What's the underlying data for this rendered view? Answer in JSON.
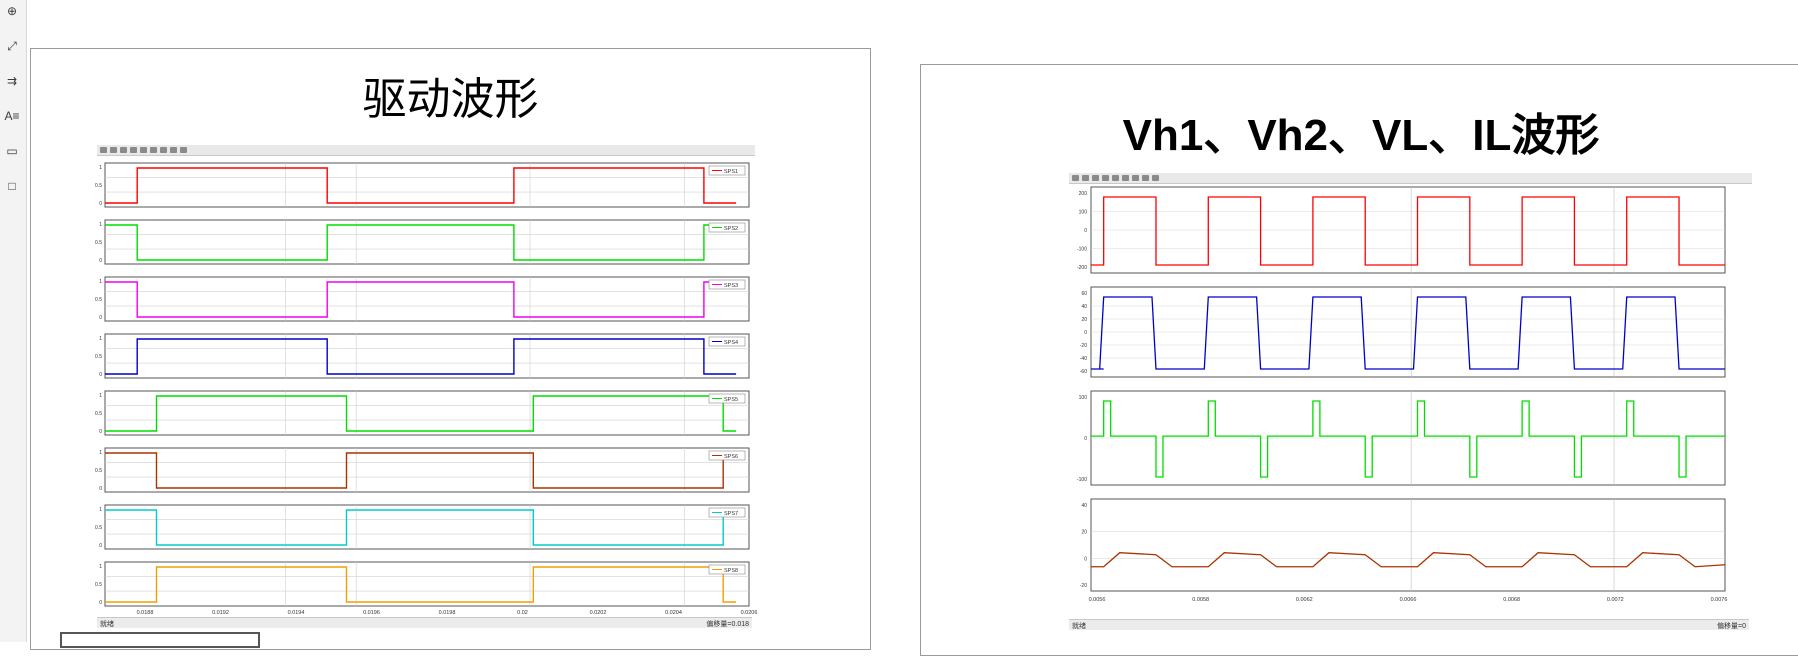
{
  "left_toolbar": {
    "tools": [
      {
        "icon": "zoom-in-icon",
        "glyph": "⊕"
      },
      {
        "icon": "fit-to-window-icon",
        "glyph": "⤢"
      },
      {
        "icon": "arrange-arrows-icon",
        "glyph": "⇉"
      },
      {
        "icon": "text-box-icon",
        "glyph": "A≡"
      },
      {
        "icon": "image-icon",
        "glyph": "▭"
      },
      {
        "icon": "shape-icon",
        "glyph": "□"
      }
    ]
  },
  "left_slide": {
    "title": "驱动波形",
    "chart_data": {
      "type": "line",
      "x_ticks": [
        "0.0188",
        "0.0192",
        "0.0194",
        "0.0196",
        "0.0198",
        "0.02",
        "0.0202",
        "0.0204",
        "0.0206"
      ],
      "xlim": [
        0,
        1
      ],
      "status_left": "就绪",
      "status_right": "偏移量=0.018",
      "series": [
        {
          "name": "SPS1",
          "color": "#ff0000",
          "points": [
            [
              0,
              0
            ],
            [
              0.05,
              0
            ],
            [
              0.05,
              1
            ],
            [
              0.345,
              1
            ],
            [
              0.345,
              0
            ],
            [
              0.635,
              0
            ],
            [
              0.635,
              1
            ],
            [
              0.93,
              1
            ],
            [
              0.93,
              0
            ],
            [
              0.98,
              0
            ]
          ],
          "yticks": [
            "1",
            "0.5",
            "0"
          ]
        },
        {
          "name": "SPS2",
          "color": "#00dd00",
          "points": [
            [
              0,
              1
            ],
            [
              0.05,
              1
            ],
            [
              0.05,
              0
            ],
            [
              0.345,
              0
            ],
            [
              0.345,
              1
            ],
            [
              0.635,
              1
            ],
            [
              0.635,
              0
            ],
            [
              0.93,
              0
            ],
            [
              0.93,
              1
            ],
            [
              0.98,
              1
            ]
          ],
          "yticks": [
            "1",
            "0.5",
            "0"
          ]
        },
        {
          "name": "SPS3",
          "color": "#ee00ee",
          "points": [
            [
              0,
              1
            ],
            [
              0.05,
              1
            ],
            [
              0.05,
              0
            ],
            [
              0.345,
              0
            ],
            [
              0.345,
              1
            ],
            [
              0.635,
              1
            ],
            [
              0.635,
              0
            ],
            [
              0.93,
              0
            ],
            [
              0.93,
              1
            ],
            [
              0.98,
              1
            ]
          ],
          "yticks": [
            "1",
            "0.5",
            "0"
          ]
        },
        {
          "name": "SPS4",
          "color": "#0000cc",
          "points": [
            [
              0,
              0
            ],
            [
              0.05,
              0
            ],
            [
              0.05,
              1
            ],
            [
              0.345,
              1
            ],
            [
              0.345,
              0
            ],
            [
              0.635,
              0
            ],
            [
              0.635,
              1
            ],
            [
              0.93,
              1
            ],
            [
              0.93,
              0
            ],
            [
              0.98,
              0
            ]
          ],
          "yticks": [
            "1",
            "0.5",
            "0"
          ]
        },
        {
          "name": "SPS5",
          "color": "#00dd00",
          "points": [
            [
              0,
              0
            ],
            [
              0.08,
              0
            ],
            [
              0.08,
              1
            ],
            [
              0.375,
              1
            ],
            [
              0.375,
              0
            ],
            [
              0.665,
              0
            ],
            [
              0.665,
              1
            ],
            [
              0.96,
              1
            ],
            [
              0.96,
              0
            ],
            [
              0.98,
              0
            ]
          ],
          "yticks": [
            "1",
            "0.5",
            "0"
          ]
        },
        {
          "name": "SPS6",
          "color": "#aa3300",
          "points": [
            [
              0,
              1
            ],
            [
              0.08,
              1
            ],
            [
              0.08,
              0
            ],
            [
              0.375,
              0
            ],
            [
              0.375,
              1
            ],
            [
              0.665,
              1
            ],
            [
              0.665,
              0
            ],
            [
              0.96,
              0
            ],
            [
              0.96,
              1
            ],
            [
              0.98,
              1
            ]
          ],
          "yticks": [
            "1",
            "0.5",
            "0"
          ]
        },
        {
          "name": "SPS7",
          "color": "#00cccc",
          "points": [
            [
              0,
              1
            ],
            [
              0.08,
              1
            ],
            [
              0.08,
              0
            ],
            [
              0.375,
              0
            ],
            [
              0.375,
              1
            ],
            [
              0.665,
              1
            ],
            [
              0.665,
              0
            ],
            [
              0.96,
              0
            ],
            [
              0.96,
              1
            ],
            [
              0.98,
              1
            ]
          ],
          "yticks": [
            "1",
            "0.5",
            "0"
          ]
        },
        {
          "name": "SPS8",
          "color": "#f0a000",
          "points": [
            [
              0,
              0
            ],
            [
              0.08,
              0
            ],
            [
              0.08,
              1
            ],
            [
              0.375,
              1
            ],
            [
              0.375,
              0
            ],
            [
              0.665,
              0
            ],
            [
              0.665,
              1
            ],
            [
              0.96,
              1
            ],
            [
              0.96,
              0
            ],
            [
              0.98,
              0
            ]
          ],
          "yticks": [
            "1",
            "0.5",
            "0"
          ]
        }
      ]
    }
  },
  "right_slide": {
    "title": "Vh1、Vh2、VL、IL波形",
    "chart_data": {
      "type": "line",
      "x_ticks": [
        "0.0056",
        "0.0058",
        "0.0062",
        "0.0066",
        "0.0068",
        "0.0072",
        "0.0076"
      ],
      "status_left": "就绪",
      "status_right": "偏移量=0",
      "series": [
        {
          "name": "Vh1",
          "color": "#ff0000",
          "kind": "square",
          "phase": 0.0,
          "yticks": [
            "200",
            "100",
            "0",
            "-100",
            "-200"
          ]
        },
        {
          "name": "Vh2",
          "color": "#0000cc",
          "kind": "square_rounded",
          "phase": 0.01,
          "yticks": [
            "60",
            "40",
            "20",
            "0",
            "-20",
            "-40",
            "-60"
          ]
        },
        {
          "name": "VL",
          "color": "#00dd00",
          "kind": "spikes",
          "phase": 0.0,
          "yticks": [
            "100",
            "0",
            "-100"
          ]
        },
        {
          "name": "IL",
          "color": "#aa3300",
          "kind": "trapezoid",
          "phase": 0.0,
          "yticks": [
            "40",
            "20",
            "0",
            "-20"
          ]
        }
      ]
    }
  }
}
